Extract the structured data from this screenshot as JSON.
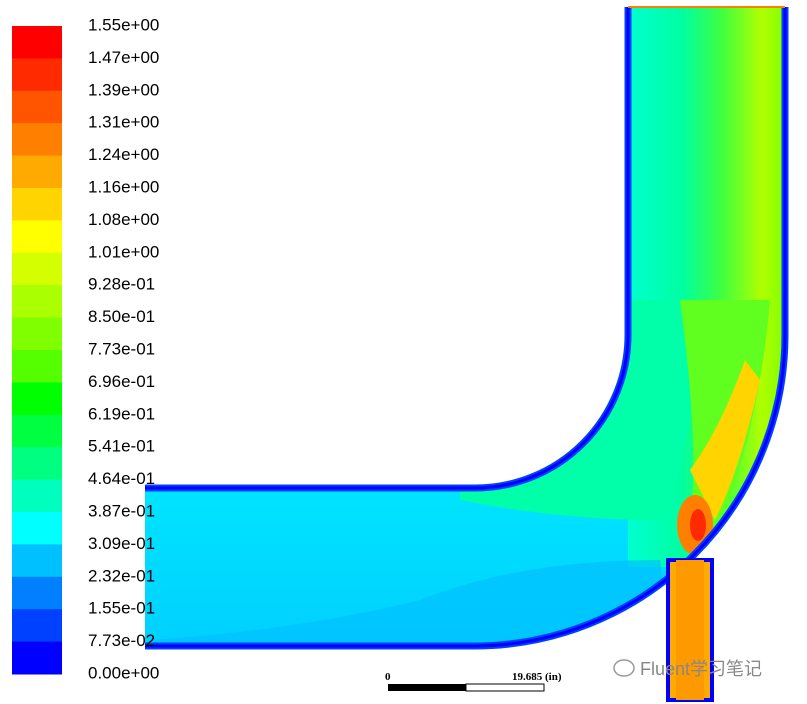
{
  "colorbar": {
    "ticks": [
      {
        "value": 1.55,
        "label": "1.55e+00"
      },
      {
        "value": 1.47,
        "label": "1.47e+00"
      },
      {
        "value": 1.39,
        "label": "1.39e+00"
      },
      {
        "value": 1.31,
        "label": "1.31e+00"
      },
      {
        "value": 1.24,
        "label": "1.24e+00"
      },
      {
        "value": 1.16,
        "label": "1.16e+00"
      },
      {
        "value": 1.08,
        "label": "1.08e+00"
      },
      {
        "value": 1.01,
        "label": "1.01e+00"
      },
      {
        "value": 0.928,
        "label": "9.28e-01"
      },
      {
        "value": 0.85,
        "label": "8.50e-01"
      },
      {
        "value": 0.773,
        "label": "7.73e-01"
      },
      {
        "value": 0.696,
        "label": "6.96e-01"
      },
      {
        "value": 0.619,
        "label": "6.19e-01"
      },
      {
        "value": 0.541,
        "label": "5.41e-01"
      },
      {
        "value": 0.464,
        "label": "4.64e-01"
      },
      {
        "value": 0.387,
        "label": "3.87e-01"
      },
      {
        "value": 0.309,
        "label": "3.09e-01"
      },
      {
        "value": 0.232,
        "label": "2.32e-01"
      },
      {
        "value": 0.155,
        "label": "1.55e-01"
      },
      {
        "value": 0.0773,
        "label": "7.73e-02"
      },
      {
        "value": 0,
        "label": "0.00e+00"
      }
    ],
    "colors": [
      "#ff0000",
      "#ff2a00",
      "#ff5500",
      "#ff8000",
      "#ffaa00",
      "#ffd400",
      "#ffff00",
      "#d4ff00",
      "#aaff00",
      "#80ff00",
      "#55ff00",
      "#00ff00",
      "#00ff40",
      "#00ff80",
      "#00ffbf",
      "#00ffff",
      "#00c0ff",
      "#0080ff",
      "#0040ff",
      "#0000ff"
    ]
  },
  "scale_bar": {
    "start": "0",
    "end": "19.685 (in)"
  },
  "watermark": "Fluent学习笔记"
}
